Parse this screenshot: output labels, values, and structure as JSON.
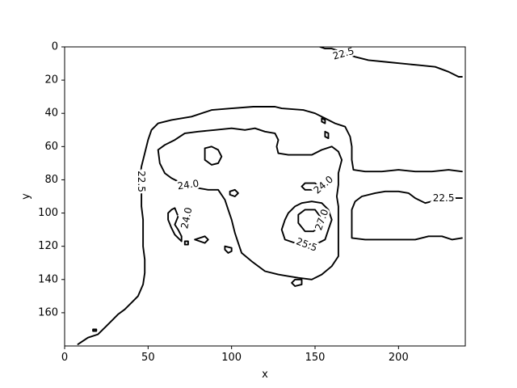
{
  "chart_data": {
    "type": "contour",
    "xlabel": "x",
    "ylabel": "y",
    "xlim": [
      0,
      240
    ],
    "ylim": [
      180,
      0
    ],
    "y_inverted": true,
    "xticks": [
      0,
      50,
      100,
      150,
      200
    ],
    "yticks": [
      0,
      20,
      40,
      60,
      80,
      100,
      120,
      140,
      160
    ],
    "grid": false,
    "line_color": "#000000",
    "levels": [
      22.5,
      24.0,
      25.5,
      27.0
    ],
    "contour_labels": [
      {
        "text": "22.5",
        "x": 167,
        "y": 4,
        "angle": -16
      },
      {
        "text": "22.5",
        "x": 227,
        "y": 91,
        "angle": 0
      },
      {
        "text": "22.5",
        "x": 46,
        "y": 81,
        "angle": 90
      },
      {
        "text": "24.0",
        "x": 74,
        "y": 83,
        "angle": -8
      },
      {
        "text": "24.0",
        "x": 73,
        "y": 103,
        "angle": -78
      },
      {
        "text": "24.0",
        "x": 155,
        "y": 83,
        "angle": -40
      },
      {
        "text": "25.5",
        "x": 145,
        "y": 119,
        "angle": 20
      },
      {
        "text": "27.0",
        "x": 154,
        "y": 104,
        "angle": -70
      }
    ],
    "contours": [
      {
        "level": 22.5,
        "points": [
          [
            8,
            179
          ],
          [
            14,
            175
          ],
          [
            20,
            173
          ],
          [
            24,
            169
          ],
          [
            28,
            165
          ],
          [
            32,
            161
          ],
          [
            36,
            158
          ],
          [
            40,
            154
          ],
          [
            44,
            150
          ],
          [
            47,
            143
          ],
          [
            48,
            136
          ],
          [
            48,
            128
          ],
          [
            47,
            120
          ],
          [
            47,
            112
          ],
          [
            47,
            104
          ],
          [
            46,
            96
          ],
          [
            46,
            88
          ],
          [
            45,
            80
          ],
          [
            46,
            72
          ],
          [
            48,
            64
          ],
          [
            50,
            56
          ],
          [
            52,
            50
          ],
          [
            56,
            46
          ],
          [
            64,
            44
          ],
          [
            76,
            42
          ],
          [
            88,
            38
          ],
          [
            100,
            37
          ],
          [
            113,
            36
          ],
          [
            126,
            36
          ],
          [
            130,
            37
          ],
          [
            143,
            38
          ],
          [
            150,
            40
          ],
          [
            156,
            43
          ],
          [
            162,
            46
          ],
          [
            168,
            48
          ],
          [
            171,
            54
          ],
          [
            172,
            60
          ],
          [
            172,
            68
          ],
          [
            173,
            74
          ],
          [
            180,
            75
          ],
          [
            190,
            75
          ],
          [
            200,
            74
          ],
          [
            210,
            75
          ],
          [
            220,
            75
          ],
          [
            230,
            74
          ],
          [
            238,
            75
          ]
        ]
      },
      {
        "level": 22.5,
        "points": [
          [
            238,
            91
          ],
          [
            232,
            91
          ],
          [
            224,
            92
          ],
          [
            216,
            94
          ],
          [
            210,
            91
          ],
          [
            206,
            88
          ],
          [
            200,
            87
          ],
          [
            192,
            87
          ],
          [
            186,
            88
          ],
          [
            178,
            90
          ],
          [
            174,
            93
          ],
          [
            172,
            98
          ],
          [
            172,
            104
          ],
          [
            172,
            110
          ],
          [
            172,
            115
          ],
          [
            180,
            116
          ],
          [
            190,
            116
          ],
          [
            200,
            116
          ],
          [
            210,
            116
          ],
          [
            218,
            114
          ],
          [
            226,
            114
          ],
          [
            232,
            116
          ],
          [
            238,
            115
          ]
        ]
      },
      {
        "level": 22.5,
        "points": [
          [
            153,
            0
          ],
          [
            156,
            1
          ],
          [
            160,
            1
          ],
          [
            166,
            3
          ],
          [
            174,
            6
          ],
          [
            182,
            8
          ],
          [
            192,
            9
          ],
          [
            202,
            10
          ],
          [
            212,
            11
          ],
          [
            222,
            12
          ],
          [
            230,
            15
          ],
          [
            236,
            18
          ],
          [
            238,
            18
          ]
        ]
      },
      {
        "level": 22.5,
        "points": [
          [
            17,
            170
          ],
          [
            19,
            170
          ],
          [
            19,
            171
          ],
          [
            17,
            171
          ],
          [
            17,
            170
          ]
        ]
      },
      {
        "level": 24.0,
        "points": [
          [
            56,
            62
          ],
          [
            60,
            59
          ],
          [
            66,
            56
          ],
          [
            72,
            52
          ],
          [
            80,
            51
          ],
          [
            90,
            50
          ],
          [
            100,
            49
          ],
          [
            108,
            50
          ],
          [
            114,
            49
          ],
          [
            120,
            51
          ],
          [
            126,
            52
          ],
          [
            128,
            56
          ],
          [
            127,
            60
          ],
          [
            128,
            64
          ],
          [
            134,
            65
          ],
          [
            142,
            65
          ],
          [
            148,
            65
          ],
          [
            154,
            62
          ],
          [
            160,
            60
          ],
          [
            164,
            63
          ],
          [
            166,
            68
          ],
          [
            165,
            72
          ],
          [
            164,
            76
          ],
          [
            164,
            83
          ],
          [
            163,
            90
          ],
          [
            164,
            96
          ],
          [
            164,
            104
          ],
          [
            164,
            110
          ],
          [
            164,
            118
          ],
          [
            164,
            126
          ],
          [
            160,
            132
          ],
          [
            154,
            137
          ],
          [
            148,
            140
          ],
          [
            140,
            139
          ],
          [
            134,
            138
          ],
          [
            128,
            137
          ],
          [
            120,
            135
          ],
          [
            112,
            129
          ],
          [
            106,
            124
          ],
          [
            104,
            118
          ],
          [
            102,
            112
          ],
          [
            100,
            104
          ],
          [
            98,
            98
          ],
          [
            96,
            92
          ],
          [
            92,
            86
          ],
          [
            86,
            86
          ],
          [
            80,
            85
          ],
          [
            74,
            84
          ],
          [
            70,
            82
          ],
          [
            64,
            79
          ],
          [
            60,
            76
          ],
          [
            57,
            70
          ],
          [
            56,
            62
          ]
        ]
      },
      {
        "level": 24.0,
        "points": [
          [
            62,
            100
          ],
          [
            64,
            98
          ],
          [
            66,
            97
          ],
          [
            68,
            102
          ],
          [
            66,
            107
          ],
          [
            68,
            110
          ],
          [
            70,
            114
          ],
          [
            70,
            117
          ],
          [
            66,
            113
          ],
          [
            64,
            109
          ],
          [
            62,
            104
          ],
          [
            62,
            100
          ]
        ]
      },
      {
        "level": 24.0,
        "points": [
          [
            84,
            61
          ],
          [
            88,
            60
          ],
          [
            92,
            62
          ],
          [
            94,
            66
          ],
          [
            92,
            70
          ],
          [
            88,
            71
          ],
          [
            84,
            68
          ],
          [
            84,
            61
          ]
        ]
      },
      {
        "level": 24.0,
        "points": [
          [
            99,
            87
          ],
          [
            102,
            86
          ],
          [
            104,
            88
          ],
          [
            102,
            90
          ],
          [
            99,
            89
          ],
          [
            99,
            87
          ]
        ]
      },
      {
        "level": 24.0,
        "points": [
          [
            72,
            117
          ],
          [
            74,
            117
          ],
          [
            74,
            119
          ],
          [
            72,
            119
          ],
          [
            72,
            117
          ]
        ]
      },
      {
        "level": 24.0,
        "points": [
          [
            78,
            116
          ],
          [
            84,
            114
          ],
          [
            86,
            116
          ],
          [
            84,
            118
          ],
          [
            78,
            116
          ]
        ]
      },
      {
        "level": 24.0,
        "points": [
          [
            96,
            120
          ],
          [
            100,
            121
          ],
          [
            100,
            123
          ],
          [
            98,
            124
          ],
          [
            96,
            122
          ],
          [
            96,
            120
          ]
        ]
      },
      {
        "level": 24.0,
        "points": [
          [
            154,
            43
          ],
          [
            156,
            44
          ],
          [
            156,
            46
          ],
          [
            154,
            45
          ],
          [
            154,
            43
          ]
        ]
      },
      {
        "level": 24.0,
        "points": [
          [
            156,
            51
          ],
          [
            158,
            52
          ],
          [
            158,
            55
          ],
          [
            156,
            54
          ],
          [
            156,
            51
          ]
        ]
      },
      {
        "level": 24.0,
        "points": [
          [
            136,
            142
          ],
          [
            138,
            140
          ],
          [
            142,
            140
          ],
          [
            142,
            143
          ],
          [
            138,
            144
          ],
          [
            136,
            142
          ]
        ]
      },
      {
        "level": 24.0,
        "points": [
          [
            142,
            84
          ],
          [
            144,
            82
          ],
          [
            150,
            82
          ],
          [
            152,
            84
          ],
          [
            150,
            86
          ],
          [
            144,
            86
          ],
          [
            142,
            84
          ]
        ]
      },
      {
        "level": 25.5,
        "points": [
          [
            130,
            110
          ],
          [
            132,
            104
          ],
          [
            134,
            100
          ],
          [
            138,
            96
          ],
          [
            142,
            94
          ],
          [
            148,
            93
          ],
          [
            154,
            94
          ],
          [
            158,
            98
          ],
          [
            160,
            104
          ],
          [
            158,
            110
          ],
          [
            156,
            116
          ],
          [
            152,
            118
          ],
          [
            146,
            119
          ],
          [
            138,
            118
          ],
          [
            132,
            116
          ],
          [
            130,
            110
          ]
        ]
      },
      {
        "level": 27.0,
        "points": [
          [
            140,
            106
          ],
          [
            140,
            101
          ],
          [
            144,
            98
          ],
          [
            150,
            98
          ],
          [
            153,
            102
          ],
          [
            153,
            108
          ],
          [
            149,
            111
          ],
          [
            144,
            111
          ],
          [
            140,
            106
          ]
        ]
      }
    ]
  }
}
